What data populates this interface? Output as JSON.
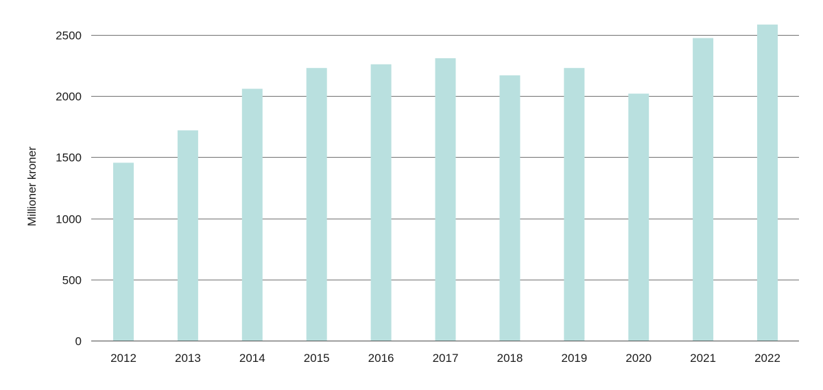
{
  "chart_data": {
    "type": "bar",
    "title": "",
    "xlabel": "",
    "ylabel": "Millioner kroner",
    "categories": [
      "2012",
      "2013",
      "2014",
      "2015",
      "2016",
      "2017",
      "2018",
      "2019",
      "2020",
      "2021",
      "2022"
    ],
    "values": [
      1455,
      1720,
      2060,
      2230,
      2260,
      2310,
      2170,
      2230,
      2020,
      2475,
      2585
    ],
    "ylim": [
      0,
      2500
    ],
    "yticks": [
      0,
      500,
      1000,
      1500,
      2000,
      2500
    ],
    "ytick_labels": [
      "0",
      "500",
      "1000",
      "1500",
      "2000",
      "2500"
    ],
    "grid": true,
    "legend": "none",
    "bar_color": "#b9e0df"
  }
}
